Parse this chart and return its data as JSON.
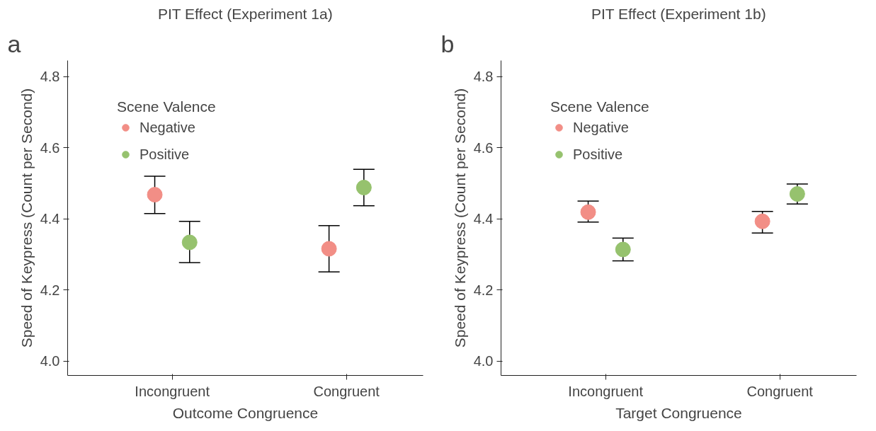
{
  "chart_data": [
    {
      "type": "scatter",
      "title": "PIT Effect (Experiment 1a)",
      "xlabel": "Outcome Congruence",
      "ylabel": "Speed of Keypress (Count per Second)",
      "legend_title": "Scene Valence",
      "annotations": [
        "a"
      ],
      "categories": [
        "Incongruent",
        "Congruent"
      ],
      "ylim": [
        3.96,
        4.845
      ],
      "yticks": [
        {
          "value": 4.0,
          "label": "4.0"
        },
        {
          "value": 4.2,
          "label": "4.2"
        },
        {
          "value": 4.4,
          "label": "4.4"
        },
        {
          "value": 4.6,
          "label": "4.6"
        },
        {
          "value": 4.8,
          "label": "4.8"
        }
      ],
      "grid": false,
      "legend": "top left",
      "marker": "circle",
      "series": [
        {
          "name": "Negative",
          "color": "#f28e86",
          "values": [
            4.468,
            4.316
          ],
          "errors": [
            [
              4.415,
              4.52
            ],
            [
              4.251,
              4.381
            ]
          ]
        },
        {
          "name": "Positive",
          "color": "#96c26e",
          "values": [
            4.334,
            4.488
          ],
          "errors": [
            [
              4.277,
              4.393
            ],
            [
              4.437,
              4.539
            ]
          ]
        }
      ]
    },
    {
      "type": "scatter",
      "title": "PIT Effect (Experiment 1b)",
      "xlabel": "Target Congruence",
      "ylabel": "Speed of Keypress (Count per Second)",
      "legend_title": "Scene Valence",
      "annotations": [
        "b"
      ],
      "categories": [
        "Incongruent",
        "Congruent"
      ],
      "ylim": [
        3.96,
        4.845
      ],
      "yticks": [
        {
          "value": 4.0,
          "label": "4.0"
        },
        {
          "value": 4.2,
          "label": "4.2"
        },
        {
          "value": 4.4,
          "label": "4.4"
        },
        {
          "value": 4.6,
          "label": "4.6"
        },
        {
          "value": 4.8,
          "label": "4.8"
        }
      ],
      "grid": false,
      "legend": "top left",
      "marker": "circle",
      "series": [
        {
          "name": "Negative",
          "color": "#f28e86",
          "values": [
            4.419,
            4.393
          ],
          "errors": [
            [
              4.391,
              4.45
            ],
            [
              4.36,
              4.421
            ]
          ]
        },
        {
          "name": "Positive",
          "color": "#96c26e",
          "values": [
            4.314,
            4.47
          ],
          "errors": [
            [
              4.282,
              4.346
            ],
            [
              4.442,
              4.498
            ]
          ]
        }
      ]
    }
  ]
}
